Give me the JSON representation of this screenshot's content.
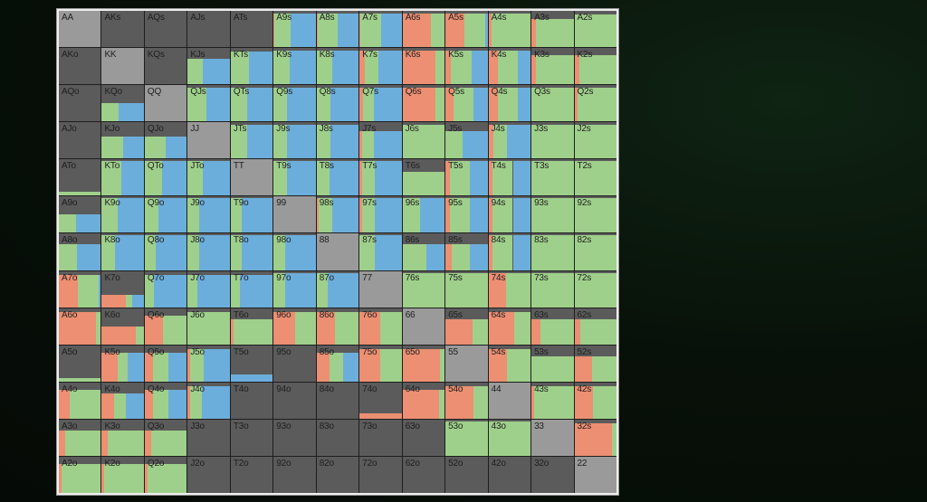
{
  "range_chart": {
    "colors": {
      "fold": "#5b5b5b",
      "call": "#9fd08b",
      "raise_small": "#6caedb",
      "raise_big": "#ec8f72",
      "pair": "#9a9a9a"
    },
    "grid": [
      [
        "AA",
        "AKs",
        "AQs",
        "AJs",
        "ATs",
        "A9s",
        "A8s",
        "A7s",
        "A6s",
        "A5s",
        "A4s",
        "A3s",
        "A2s"
      ],
      [
        "AKo",
        "KK",
        "KQs",
        "KJs",
        "KTs",
        "K9s",
        "K8s",
        "K7s",
        "K6s",
        "K5s",
        "K4s",
        "K3s",
        "K2s"
      ],
      [
        "AQo",
        "KQo",
        "QQ",
        "QJs",
        "QTs",
        "Q9s",
        "Q8s",
        "Q7s",
        "Q6s",
        "Q5s",
        "Q4s",
        "Q3s",
        "Q2s"
      ],
      [
        "AJo",
        "KJo",
        "QJo",
        "JJ",
        "JTs",
        "J9s",
        "J8s",
        "J7s",
        "J6s",
        "J5s",
        "J4s",
        "J3s",
        "J2s"
      ],
      [
        "ATo",
        "KTo",
        "QTo",
        "JTo",
        "TT",
        "T9s",
        "T8s",
        "T7s",
        "T6s",
        "T5s",
        "T4s",
        "T3s",
        "T2s"
      ],
      [
        "A9o",
        "K9o",
        "Q9o",
        "J9o",
        "T9o",
        "99",
        "98s",
        "97s",
        "96s",
        "95s",
        "94s",
        "93s",
        "92s"
      ],
      [
        "A8o",
        "K8o",
        "Q8o",
        "J8o",
        "T8o",
        "98o",
        "88",
        "87s",
        "86s",
        "85s",
        "84s",
        "83s",
        "82s"
      ],
      [
        "A7o",
        "K7o",
        "Q7o",
        "J7o",
        "T7o",
        "97o",
        "87o",
        "77",
        "76s",
        "75s",
        "74s",
        "73s",
        "72s"
      ],
      [
        "A6o",
        "K6o",
        "Q6o",
        "J6o",
        "T6o",
        "96o",
        "86o",
        "76o",
        "66",
        "65s",
        "64s",
        "63s",
        "62s"
      ],
      [
        "A5o",
        "K5o",
        "Q5o",
        "J5o",
        "T5o",
        "95o",
        "85o",
        "75o",
        "65o",
        "55",
        "54s",
        "53s",
        "52s"
      ],
      [
        "A4o",
        "K4o",
        "Q4o",
        "J4o",
        "T4o",
        "94o",
        "84o",
        "74o",
        "64o",
        "54o",
        "44",
        "43s",
        "42s"
      ],
      [
        "A3o",
        "K3o",
        "Q3o",
        "J3o",
        "T3o",
        "93o",
        "83o",
        "73o",
        "63o",
        "53o",
        "43o",
        "33",
        "32s"
      ],
      [
        "A2o",
        "K2o",
        "Q2o",
        "J2o",
        "T2o",
        "92o",
        "82o",
        "72o",
        "62o",
        "52o",
        "42o",
        "32o",
        "22"
      ]
    ],
    "cells": [
      [
        {
          "f": 0,
          "c": 0,
          "b": 0,
          "r": 0
        },
        {
          "f": 1,
          "c": 0,
          "b": 0,
          "r": 0
        },
        {
          "f": 1,
          "c": 0,
          "b": 0,
          "r": 0
        },
        {
          "f": 1,
          "c": 0,
          "b": 0,
          "r": 0
        },
        {
          "f": 1,
          "c": 0,
          "b": 0,
          "r": 0
        },
        {
          "f": 0.08,
          "c": 0.35,
          "b": 0.55,
          "r": 0.02
        },
        {
          "f": 0.08,
          "c": 0.45,
          "b": 0.45,
          "r": 0.02
        },
        {
          "f": 0.08,
          "c": 0.45,
          "b": 0.45,
          "r": 0.02
        },
        {
          "f": 0.08,
          "c": 0.3,
          "b": 0,
          "r": 0.62
        },
        {
          "f": 0.08,
          "c": 0.45,
          "b": 0.05,
          "r": 0.42
        },
        {
          "f": 0.08,
          "c": 0.85,
          "b": 0,
          "r": 0.07
        },
        {
          "f": 0.22,
          "c": 0.7,
          "b": 0,
          "r": 0.08
        },
        {
          "f": 0.1,
          "c": 0.9,
          "b": 0,
          "r": 0
        }
      ],
      [
        {
          "f": 1,
          "c": 0,
          "b": 0,
          "r": 0
        },
        {
          "f": 0,
          "c": 0,
          "b": 0,
          "r": 0
        },
        {
          "f": 1,
          "c": 0,
          "b": 0,
          "r": 0
        },
        {
          "f": 0.3,
          "c": 0.25,
          "b": 0.45,
          "r": 0
        },
        {
          "f": 0.1,
          "c": 0.4,
          "b": 0.5,
          "r": 0
        },
        {
          "f": 0.08,
          "c": 0.35,
          "b": 0.57,
          "r": 0
        },
        {
          "f": 0.08,
          "c": 0.35,
          "b": 0.57,
          "r": 0
        },
        {
          "f": 0.08,
          "c": 0.3,
          "b": 0.5,
          "r": 0.12
        },
        {
          "f": 0.08,
          "c": 0.2,
          "b": 0,
          "r": 0.72
        },
        {
          "f": 0.08,
          "c": 0.45,
          "b": 0.35,
          "r": 0.12
        },
        {
          "f": 0.08,
          "c": 0.45,
          "b": 0.27,
          "r": 0.2
        },
        {
          "f": 0.2,
          "c": 0.72,
          "b": 0,
          "r": 0.08
        },
        {
          "f": 0.2,
          "c": 0.7,
          "b": 0,
          "r": 0.1
        }
      ],
      [
        {
          "f": 1,
          "c": 0,
          "b": 0,
          "r": 0
        },
        {
          "f": 0.5,
          "c": 0.2,
          "b": 0.3,
          "r": 0
        },
        {
          "f": 0,
          "c": 0,
          "b": 0,
          "r": 0
        },
        {
          "f": 0.08,
          "c": 0.4,
          "b": 0.52,
          "r": 0
        },
        {
          "f": 0.08,
          "c": 0.35,
          "b": 0.57,
          "r": 0
        },
        {
          "f": 0.08,
          "c": 0.3,
          "b": 0.62,
          "r": 0
        },
        {
          "f": 0.08,
          "c": 0.3,
          "b": 0.62,
          "r": 0
        },
        {
          "f": 0.08,
          "c": 0.25,
          "b": 0.6,
          "r": 0.07
        },
        {
          "f": 0.08,
          "c": 0.2,
          "b": 0,
          "r": 0.72
        },
        {
          "f": 0.08,
          "c": 0.45,
          "b": 0.3,
          "r": 0.17
        },
        {
          "f": 0.08,
          "c": 0.45,
          "b": 0.27,
          "r": 0.2
        },
        {
          "f": 0.08,
          "c": 0.92,
          "b": 0,
          "r": 0
        },
        {
          "f": 0.08,
          "c": 0.85,
          "b": 0,
          "r": 0.07
        }
      ],
      [
        {
          "f": 1,
          "c": 0,
          "b": 0,
          "r": 0
        },
        {
          "f": 0.4,
          "c": 0.3,
          "b": 0.3,
          "r": 0
        },
        {
          "f": 0.4,
          "c": 0.3,
          "b": 0.3,
          "r": 0
        },
        {
          "f": 0,
          "c": 0,
          "b": 0,
          "r": 0
        },
        {
          "f": 0.08,
          "c": 0.35,
          "b": 0.57,
          "r": 0
        },
        {
          "f": 0.08,
          "c": 0.3,
          "b": 0.62,
          "r": 0
        },
        {
          "f": 0.08,
          "c": 0.3,
          "b": 0.62,
          "r": 0
        },
        {
          "f": 0.25,
          "c": 0.2,
          "b": 0.5,
          "r": 0.05
        },
        {
          "f": 0.08,
          "c": 0.92,
          "b": 0,
          "r": 0
        },
        {
          "f": 0.25,
          "c": 0.3,
          "b": 0.45,
          "r": 0
        },
        {
          "f": 0.08,
          "c": 0.3,
          "b": 0.52,
          "r": 0.1
        },
        {
          "f": 0.08,
          "c": 0.92,
          "b": 0,
          "r": 0
        },
        {
          "f": 0.08,
          "c": 0.92,
          "b": 0,
          "r": 0
        }
      ],
      [
        {
          "f": 0.88,
          "c": 0.12,
          "b": 0,
          "r": 0
        },
        {
          "f": 0.05,
          "c": 0.45,
          "b": 0.5,
          "r": 0
        },
        {
          "f": 0.05,
          "c": 0.4,
          "b": 0.55,
          "r": 0
        },
        {
          "f": 0.05,
          "c": 0.35,
          "b": 0.6,
          "r": 0
        },
        {
          "f": 0,
          "c": 0,
          "b": 0,
          "r": 0
        },
        {
          "f": 0.05,
          "c": 0.3,
          "b": 0.65,
          "r": 0
        },
        {
          "f": 0.05,
          "c": 0.3,
          "b": 0.65,
          "r": 0
        },
        {
          "f": 0.05,
          "c": 0.3,
          "b": 0.6,
          "r": 0.05
        },
        {
          "f": 0.35,
          "c": 0.65,
          "b": 0,
          "r": 0
        },
        {
          "f": 0.05,
          "c": 0.45,
          "b": 0.4,
          "r": 0.1
        },
        {
          "f": 0.05,
          "c": 0.45,
          "b": 0.4,
          "r": 0.1
        },
        {
          "f": 0.05,
          "c": 0.95,
          "b": 0,
          "r": 0
        },
        {
          "f": 0.05,
          "c": 0.95,
          "b": 0,
          "r": 0
        }
      ],
      [
        {
          "f": 0.5,
          "c": 0.2,
          "b": 0.3,
          "r": 0
        },
        {
          "f": 0.05,
          "c": 0.35,
          "b": 0.6,
          "r": 0
        },
        {
          "f": 0.05,
          "c": 0.3,
          "b": 0.65,
          "r": 0
        },
        {
          "f": 0.05,
          "c": 0.25,
          "b": 0.7,
          "r": 0
        },
        {
          "f": 0.05,
          "c": 0.25,
          "b": 0.7,
          "r": 0
        },
        {
          "f": 0,
          "c": 0,
          "b": 0,
          "r": 0
        },
        {
          "f": 0.05,
          "c": 0.3,
          "b": 0.6,
          "r": 0.05
        },
        {
          "f": 0.05,
          "c": 0.3,
          "b": 0.6,
          "r": 0.05
        },
        {
          "f": 0.05,
          "c": 0.4,
          "b": 0.55,
          "r": 0
        },
        {
          "f": 0.05,
          "c": 0.45,
          "b": 0.4,
          "r": 0.1
        },
        {
          "f": 0.05,
          "c": 0.45,
          "b": 0.4,
          "r": 0.1
        },
        {
          "f": 0.05,
          "c": 0.95,
          "b": 0,
          "r": 0
        },
        {
          "f": 0.05,
          "c": 0.95,
          "b": 0,
          "r": 0
        }
      ],
      [
        {
          "f": 0.3,
          "c": 0.3,
          "b": 0.4,
          "r": 0
        },
        {
          "f": 0.05,
          "c": 0.3,
          "b": 0.65,
          "r": 0
        },
        {
          "f": 0.05,
          "c": 0.25,
          "b": 0.7,
          "r": 0
        },
        {
          "f": 0.05,
          "c": 0.25,
          "b": 0.7,
          "r": 0
        },
        {
          "f": 0.05,
          "c": 0.25,
          "b": 0.7,
          "r": 0
        },
        {
          "f": 0.05,
          "c": 0.25,
          "b": 0.7,
          "r": 0
        },
        {
          "f": 0,
          "c": 0,
          "b": 0,
          "r": 0
        },
        {
          "f": 0.05,
          "c": 0.35,
          "b": 0.6,
          "r": 0
        },
        {
          "f": 0.3,
          "c": 0.4,
          "b": 0.3,
          "r": 0
        },
        {
          "f": 0.3,
          "c": 0.3,
          "b": 0.3,
          "r": 0.1
        },
        {
          "f": 0.05,
          "c": 0.45,
          "b": 0.4,
          "r": 0.1
        },
        {
          "f": 0.05,
          "c": 0.95,
          "b": 0,
          "r": 0
        },
        {
          "f": 0.05,
          "c": 0.95,
          "b": 0,
          "r": 0
        }
      ],
      [
        {
          "f": 0.1,
          "c": 0.45,
          "b": 0.05,
          "r": 0.4
        },
        {
          "f": 0.65,
          "c": 0.05,
          "b": 0.1,
          "r": 0.2
        },
        {
          "f": 0.1,
          "c": 0.2,
          "b": 0.7,
          "r": 0
        },
        {
          "f": 0.1,
          "c": 0.2,
          "b": 0.7,
          "r": 0
        },
        {
          "f": 0.1,
          "c": 0.2,
          "b": 0.7,
          "r": 0
        },
        {
          "f": 0.05,
          "c": 0.25,
          "b": 0.7,
          "r": 0
        },
        {
          "f": 0.05,
          "c": 0.25,
          "b": 0.7,
          "r": 0
        },
        {
          "f": 0,
          "c": 0,
          "b": 0,
          "r": 0
        },
        {
          "f": 0.05,
          "c": 0.95,
          "b": 0,
          "r": 0
        },
        {
          "f": 0.05,
          "c": 0.95,
          "b": 0,
          "r": 0
        },
        {
          "f": 0.05,
          "c": 0.55,
          "b": 0,
          "r": 0.4
        },
        {
          "f": 0.05,
          "c": 0.95,
          "b": 0,
          "r": 0
        },
        {
          "f": 0.05,
          "c": 0.95,
          "b": 0,
          "r": 0
        }
      ],
      [
        {
          "f": 0.1,
          "c": 0.1,
          "b": 0,
          "r": 0.8
        },
        {
          "f": 0.5,
          "c": 0.1,
          "b": 0,
          "r": 0.4
        },
        {
          "f": 0.2,
          "c": 0.45,
          "b": 0,
          "r": 0.35
        },
        {
          "f": 0.1,
          "c": 0.9,
          "b": 0,
          "r": 0
        },
        {
          "f": 0.3,
          "c": 0.65,
          "b": 0,
          "r": 0.05
        },
        {
          "f": 0.1,
          "c": 0.45,
          "b": 0,
          "r": 0.45
        },
        {
          "f": 0.1,
          "c": 0.5,
          "b": 0,
          "r": 0.4
        },
        {
          "f": 0.1,
          "c": 0.45,
          "b": 0,
          "r": 0.45
        },
        {
          "f": 0,
          "c": 0,
          "b": 0,
          "r": 0
        },
        {
          "f": 0.3,
          "c": 0.25,
          "b": 0,
          "r": 0.45
        },
        {
          "f": 0.1,
          "c": 0.35,
          "b": 0,
          "r": 0.55
        },
        {
          "f": 0.3,
          "c": 0.55,
          "b": 0,
          "r": 0.15
        },
        {
          "f": 0.3,
          "c": 0.6,
          "b": 0,
          "r": 0.1
        }
      ],
      [
        {
          "f": 0.9,
          "c": 0.1,
          "b": 0,
          "r": 0
        },
        {
          "f": 0.2,
          "c": 0.2,
          "b": 0.3,
          "r": 0.3
        },
        {
          "f": 0.2,
          "c": 0.3,
          "b": 0.35,
          "r": 0.15
        },
        {
          "f": 0.1,
          "c": 0.3,
          "b": 0.55,
          "r": 0.05
        },
        {
          "f": 0.8,
          "c": 0,
          "b": 0.2,
          "r": 0
        },
        {
          "f": 1,
          "c": 0,
          "b": 0,
          "r": 0
        },
        {
          "f": 0.2,
          "c": 0.25,
          "b": 0.3,
          "r": 0.25
        },
        {
          "f": 0.1,
          "c": 0.45,
          "b": 0,
          "r": 0.45
        },
        {
          "f": 0.1,
          "c": 0.1,
          "b": 0,
          "r": 0.8
        },
        {
          "f": 0,
          "c": 0,
          "b": 0,
          "r": 0
        },
        {
          "f": 0.1,
          "c": 0.5,
          "b": 0,
          "r": 0.4
        },
        {
          "f": 0.3,
          "c": 0.7,
          "b": 0,
          "r": 0
        },
        {
          "f": 0.3,
          "c": 0.4,
          "b": 0,
          "r": 0.3
        }
      ],
      [
        {
          "f": 0.2,
          "c": 0.6,
          "b": 0,
          "r": 0.2
        },
        {
          "f": 0.3,
          "c": 0.2,
          "b": 0.3,
          "r": 0.2
        },
        {
          "f": 0.2,
          "c": 0.3,
          "b": 0.35,
          "r": 0.15
        },
        {
          "f": 0.1,
          "c": 0.25,
          "b": 0.6,
          "r": 0.05
        },
        {
          "f": 1,
          "c": 0,
          "b": 0,
          "r": 0
        },
        {
          "f": 1,
          "c": 0,
          "b": 0,
          "r": 0
        },
        {
          "f": 1,
          "c": 0,
          "b": 0,
          "r": 0
        },
        {
          "f": 0.85,
          "c": 0,
          "b": 0,
          "r": 0.15
        },
        {
          "f": 0.2,
          "c": 0.1,
          "b": 0,
          "r": 0.7
        },
        {
          "f": 0.1,
          "c": 0.3,
          "b": 0,
          "r": 0.6
        },
        {
          "f": 0,
          "c": 0,
          "b": 0,
          "r": 0
        },
        {
          "f": 0.1,
          "c": 0.85,
          "b": 0,
          "r": 0.05
        },
        {
          "f": 0.1,
          "c": 0.5,
          "b": 0,
          "r": 0.4
        }
      ],
      [
        {
          "f": 0.3,
          "c": 0.6,
          "b": 0,
          "r": 0.1
        },
        {
          "f": 0.3,
          "c": 0.6,
          "b": 0,
          "r": 0.1
        },
        {
          "f": 0.3,
          "c": 0.6,
          "b": 0,
          "r": 0.1
        },
        {
          "f": 1,
          "c": 0,
          "b": 0,
          "r": 0
        },
        {
          "f": 1,
          "c": 0,
          "b": 0,
          "r": 0
        },
        {
          "f": 1,
          "c": 0,
          "b": 0,
          "r": 0
        },
        {
          "f": 1,
          "c": 0,
          "b": 0,
          "r": 0
        },
        {
          "f": 1,
          "c": 0,
          "b": 0,
          "r": 0
        },
        {
          "f": 1,
          "c": 0,
          "b": 0,
          "r": 0
        },
        {
          "f": 0.05,
          "c": 0.95,
          "b": 0,
          "r": 0
        },
        {
          "f": 0.05,
          "c": 0.95,
          "b": 0,
          "r": 0
        },
        {
          "f": 0,
          "c": 0,
          "b": 0,
          "r": 0
        },
        {
          "f": 0.1,
          "c": 0.1,
          "b": 0,
          "r": 0.8
        }
      ],
      [
        {
          "f": 0.2,
          "c": 0.75,
          "b": 0,
          "r": 0.05
        },
        {
          "f": 0.2,
          "c": 0.75,
          "b": 0,
          "r": 0.05
        },
        {
          "f": 0.2,
          "c": 0.75,
          "b": 0,
          "r": 0.05
        },
        {
          "f": 1,
          "c": 0,
          "b": 0,
          "r": 0
        },
        {
          "f": 1,
          "c": 0,
          "b": 0,
          "r": 0
        },
        {
          "f": 1,
          "c": 0,
          "b": 0,
          "r": 0
        },
        {
          "f": 1,
          "c": 0,
          "b": 0,
          "r": 0
        },
        {
          "f": 1,
          "c": 0,
          "b": 0,
          "r": 0
        },
        {
          "f": 1,
          "c": 0,
          "b": 0,
          "r": 0
        },
        {
          "f": 1,
          "c": 0,
          "b": 0,
          "r": 0
        },
        {
          "f": 1,
          "c": 0,
          "b": 0,
          "r": 0
        },
        {
          "f": 1,
          "c": 0,
          "b": 0,
          "r": 0
        },
        {
          "f": 0,
          "c": 0,
          "b": 0,
          "r": 0
        }
      ]
    ]
  }
}
